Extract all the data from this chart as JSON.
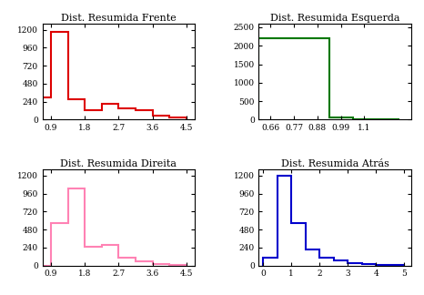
{
  "plots": [
    {
      "title": "Dist. Resumida Frente",
      "color": "#dd0000",
      "bin_edges": [
        0.675,
        0.9,
        1.35,
        1.8,
        2.25,
        2.7,
        3.15,
        3.6,
        4.05,
        4.5
      ],
      "counts": [
        300,
        1170,
        270,
        130,
        210,
        150,
        120,
        50,
        30
      ],
      "xlim": [
        0.675,
        4.725
      ],
      "ylim": [
        0,
        1280
      ],
      "xticks": [
        0.9,
        1.8,
        2.7,
        3.6,
        4.5
      ],
      "yticks": [
        0,
        240,
        480,
        720,
        960,
        1200
      ]
    },
    {
      "title": "Dist. Resumida Esquerda",
      "color": "#007700",
      "bin_edges": [
        0.605,
        0.715,
        0.825,
        0.935,
        1.045,
        1.155,
        1.265
      ],
      "counts": [
        2200,
        2200,
        2200,
        50,
        20,
        10
      ],
      "xlim": [
        0.605,
        1.32
      ],
      "ylim": [
        0,
        2600
      ],
      "xticks": [
        0.66,
        0.77,
        0.88,
        0.99,
        1.1
      ],
      "yticks": [
        0,
        500,
        1000,
        1500,
        2000,
        2500
      ]
    },
    {
      "title": "Dist. Resumida Direita",
      "color": "#ff82b4",
      "bin_edges": [
        0.675,
        0.9,
        1.35,
        1.8,
        2.25,
        2.7,
        3.15,
        3.6,
        4.05,
        4.5
      ],
      "counts": [
        0,
        560,
        1030,
        250,
        270,
        110,
        50,
        20,
        10
      ],
      "xlim": [
        0.675,
        4.725
      ],
      "ylim": [
        0,
        1280
      ],
      "xticks": [
        0.9,
        1.8,
        2.7,
        3.6,
        4.5
      ],
      "yticks": [
        0,
        240,
        480,
        720,
        960,
        1200
      ]
    },
    {
      "title": "Dist. Resumida Atrás",
      "color": "#0000cc",
      "bin_edges": [
        0,
        0.5,
        1.0,
        1.5,
        2.0,
        2.5,
        3.0,
        3.5,
        4.0,
        4.5,
        5.0
      ],
      "counts": [
        100,
        1200,
        560,
        210,
        110,
        70,
        30,
        20,
        10,
        10
      ],
      "xlim": [
        -0.15,
        5.25
      ],
      "ylim": [
        0,
        1280
      ],
      "xticks": [
        0,
        1,
        2,
        3,
        4,
        5
      ],
      "yticks": [
        0,
        240,
        480,
        720,
        960,
        1200
      ]
    }
  ],
  "fig_background": "#ffffff",
  "ax_background": "#ffffff",
  "title_fontsize": 8,
  "tick_fontsize": 6.5,
  "linewidth": 1.5
}
